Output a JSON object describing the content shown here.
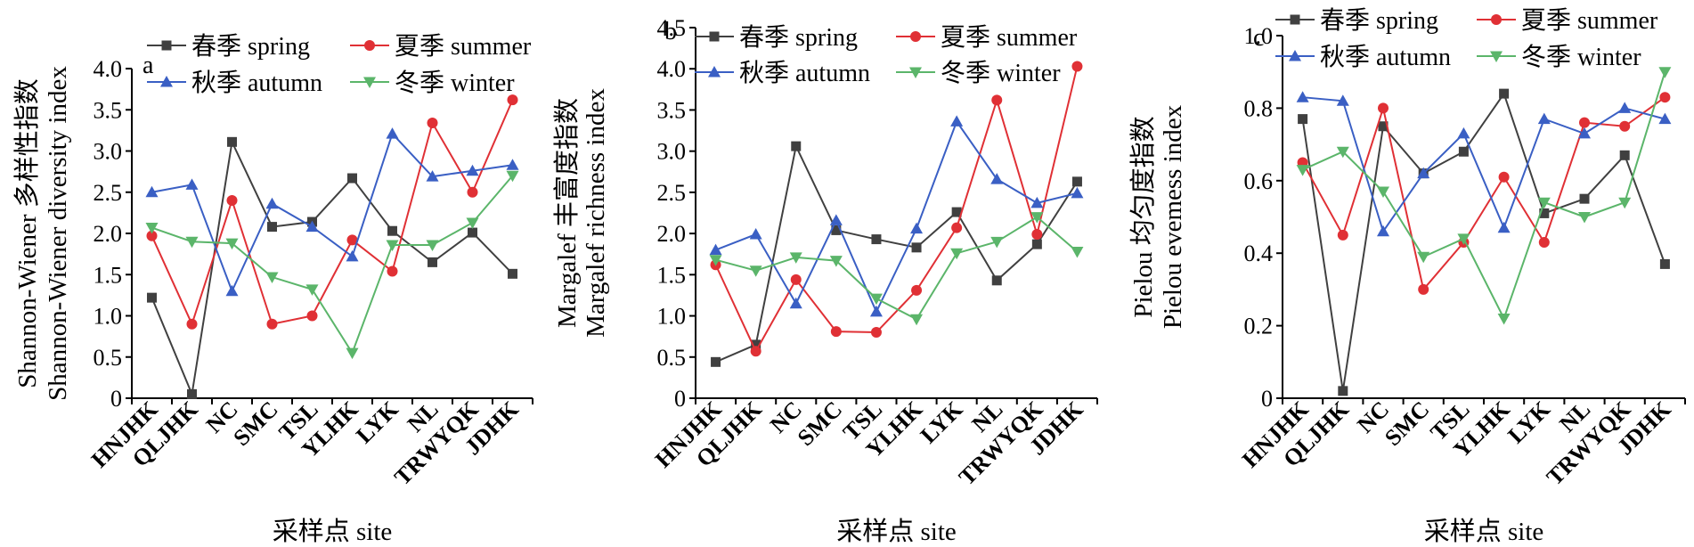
{
  "chart_data": [
    {
      "type": "line",
      "panel_label": "a",
      "ylabel_line1": "Shannon-Wiener 多样性指数",
      "ylabel_line2": "Shannon-Wiener diversity index",
      "xlabel": "采样点 site",
      "ylim": [
        0,
        4.0
      ],
      "yticks": [
        "0",
        "0.5",
        "1.0",
        "1.5",
        "2.0",
        "2.5",
        "3.0",
        "3.5",
        "4.0"
      ],
      "categories": [
        "HNJHK",
        "QLJHK",
        "NC",
        "SMC",
        "TSL",
        "YLHK",
        "LYK",
        "NL",
        "TRWYQK",
        "JDHK"
      ],
      "series": [
        {
          "name": "春季 spring",
          "color": "#404040",
          "marker": "square",
          "values": [
            1.22,
            0.05,
            3.11,
            2.08,
            2.14,
            2.67,
            2.03,
            1.65,
            2.01,
            1.51
          ]
        },
        {
          "name": "夏季 summer",
          "color": "#e03035",
          "marker": "circle",
          "values": [
            1.97,
            0.9,
            2.4,
            0.9,
            1.0,
            1.92,
            1.54,
            3.34,
            2.5,
            3.62
          ]
        },
        {
          "name": "秋季 autumn",
          "color": "#3a5fc4",
          "marker": "triangle-up",
          "values": [
            2.5,
            2.59,
            1.3,
            2.36,
            2.08,
            1.72,
            3.21,
            2.69,
            2.76,
            2.83
          ]
        },
        {
          "name": "冬季 winter",
          "color": "#5bb56a",
          "marker": "triangle-down",
          "values": [
            2.07,
            1.9,
            1.88,
            1.47,
            1.32,
            0.55,
            1.86,
            1.86,
            2.13,
            2.7
          ]
        }
      ]
    },
    {
      "type": "line",
      "panel_label": "b",
      "ylabel_line1": "Margalef 丰富度指数",
      "ylabel_line2": "Margalef richness index",
      "xlabel": "采样点 site",
      "ylim": [
        0,
        4.5
      ],
      "yticks": [
        "0",
        "0.5",
        "1.0",
        "1.5",
        "2.0",
        "2.5",
        "3.0",
        "3.5",
        "4.0",
        "4.5"
      ],
      "categories": [
        "HNJHK",
        "QLJHK",
        "NC",
        "SMC",
        "TSL",
        "YLHK",
        "LYK",
        "NL",
        "TRWYQK",
        "JDHK"
      ],
      "series": [
        {
          "name": "春季 spring",
          "color": "#404040",
          "marker": "square",
          "values": [
            0.44,
            0.65,
            3.06,
            2.04,
            1.93,
            1.83,
            2.26,
            1.43,
            1.87,
            2.63
          ]
        },
        {
          "name": "夏季 summer",
          "color": "#e03035",
          "marker": "circle",
          "values": [
            1.62,
            0.57,
            1.44,
            0.81,
            0.8,
            1.31,
            2.07,
            3.62,
            1.99,
            4.03
          ]
        },
        {
          "name": "秋季 autumn",
          "color": "#3a5fc4",
          "marker": "triangle-up",
          "values": [
            1.8,
            1.99,
            1.15,
            2.16,
            1.05,
            2.06,
            3.36,
            2.66,
            2.37,
            2.49
          ]
        },
        {
          "name": "冬季 winter",
          "color": "#5bb56a",
          "marker": "triangle-down",
          "values": [
            1.68,
            1.55,
            1.71,
            1.67,
            1.21,
            0.96,
            1.76,
            1.9,
            2.2,
            1.78
          ]
        }
      ]
    },
    {
      "type": "line",
      "panel_label": "c",
      "ylabel_line1": "Pielou 均匀度指数",
      "ylabel_line2": "Pielou evemess index",
      "xlabel": "采样点 site",
      "ylim": [
        0,
        1.0
      ],
      "yticks": [
        "0",
        "0.2",
        "0.4",
        "0.6",
        "0.8",
        "1.0"
      ],
      "categories": [
        "HNJHK",
        "QLJHK",
        "NC",
        "SMC",
        "TSL",
        "YLHK",
        "LYK",
        "NL",
        "TRWYQK",
        "JDHK"
      ],
      "series": [
        {
          "name": "春季 spring",
          "color": "#404040",
          "marker": "square",
          "values": [
            0.77,
            0.02,
            0.75,
            0.62,
            0.68,
            0.84,
            0.51,
            0.55,
            0.67,
            0.37
          ]
        },
        {
          "name": "夏季 summer",
          "color": "#e03035",
          "marker": "circle",
          "values": [
            0.65,
            0.45,
            0.8,
            0.3,
            0.43,
            0.61,
            0.43,
            0.76,
            0.75,
            0.83
          ]
        },
        {
          "name": "秋季 autumn",
          "color": "#3a5fc4",
          "marker": "triangle-up",
          "values": [
            0.83,
            0.82,
            0.46,
            0.62,
            0.73,
            0.47,
            0.77,
            0.73,
            0.8,
            0.77
          ]
        },
        {
          "name": "冬季 winter",
          "color": "#5bb56a",
          "marker": "triangle-down",
          "values": [
            0.63,
            0.68,
            0.57,
            0.39,
            0.44,
            0.22,
            0.54,
            0.5,
            0.54,
            0.9
          ]
        }
      ]
    }
  ]
}
